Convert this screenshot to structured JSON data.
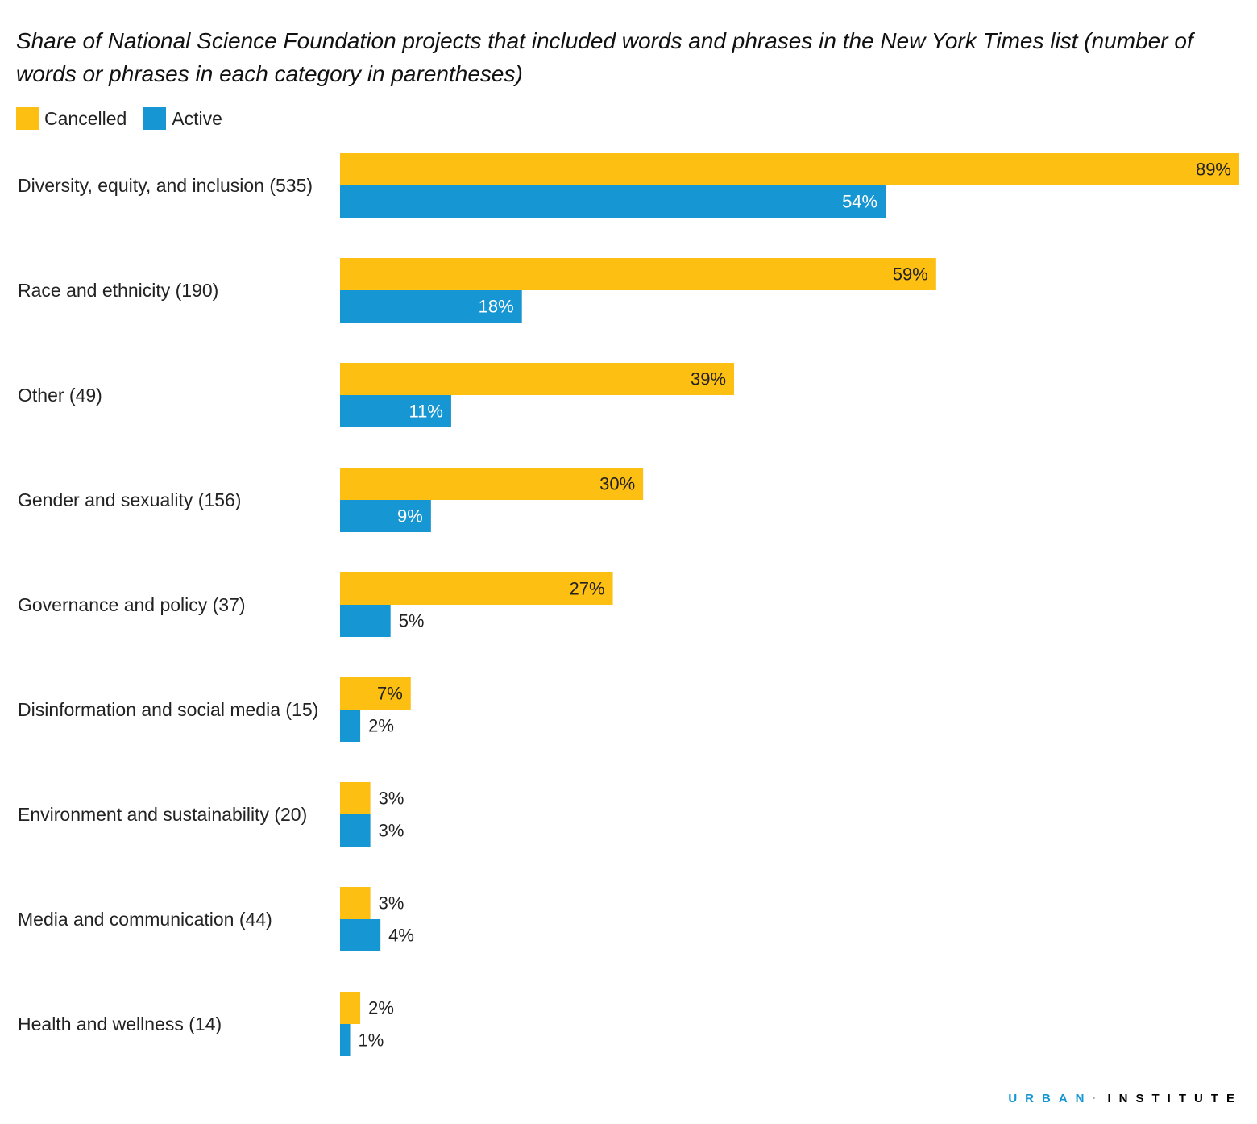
{
  "colors": {
    "cancelled": "#fdbf11",
    "active": "#1696d2"
  },
  "brand": {
    "part1": "URBAN",
    "separator": "·",
    "part2": "INSTITUTE"
  },
  "chart_data": {
    "type": "bar",
    "orientation": "horizontal",
    "title": "Share of National Science Foundation projects that included words and phrases in the New York Times list (number of words or phrases in each category in parentheses)",
    "legend": [
      "Cancelled",
      "Active"
    ],
    "legend_position": "top-left",
    "grid": false,
    "xlim": [
      0,
      89
    ],
    "categories": [
      "Diversity, equity, and inclusion (535)",
      "Race and ethnicity (190)",
      "Other (49)",
      "Gender and sexuality (156)",
      "Governance and policy (37)",
      "Disinformation and social media (15)",
      "Environment and sustainability (20)",
      "Media and communication (44)",
      "Health and wellness (14)"
    ],
    "series": [
      {
        "name": "Cancelled",
        "values": [
          89,
          59,
          39,
          30,
          27,
          7,
          3,
          3,
          2
        ],
        "labels": [
          "89%",
          "59%",
          "39%",
          "30%",
          "27%",
          "7%",
          "3%",
          "3%",
          "2%"
        ]
      },
      {
        "name": "Active",
        "values": [
          54,
          18,
          11,
          9,
          5,
          2,
          3,
          4,
          1
        ],
        "labels": [
          "54%",
          "18%",
          "11%",
          "9%",
          "5%",
          "2%",
          "3%",
          "4%",
          "1%"
        ]
      }
    ]
  }
}
